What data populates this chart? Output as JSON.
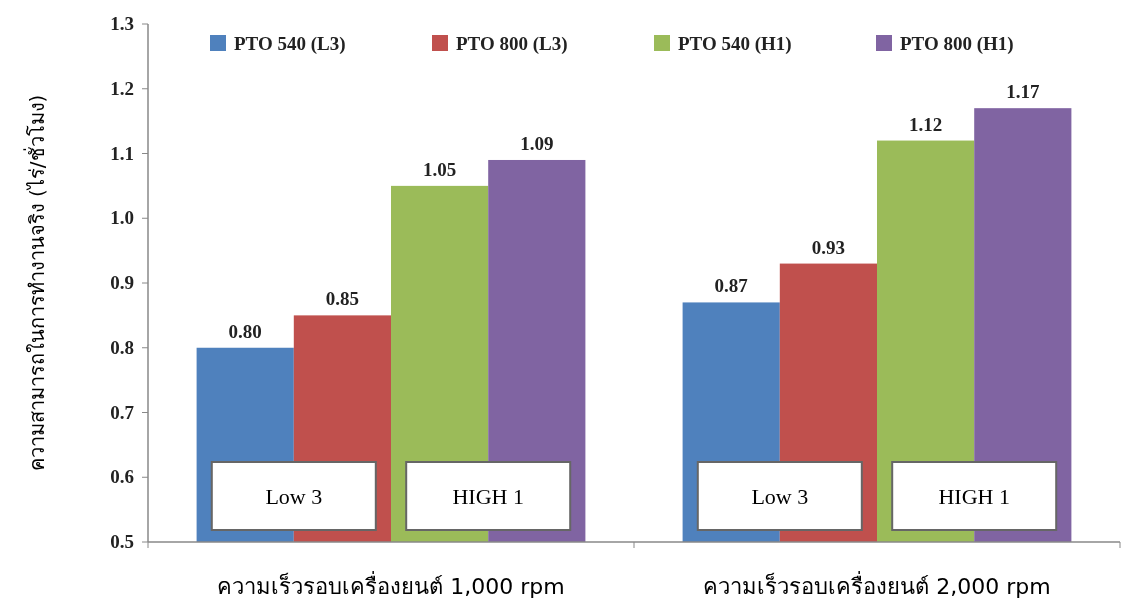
{
  "chart_data": {
    "type": "bar",
    "ylabel": "ความสามารถในการทำงานจริง (ไร่/ชั่วโมง)",
    "categories": [
      "ความเร็วรอบเครื่องยนต์ 1,000 rpm",
      "ความเร็วรอบเครื่องยนต์ 2,000 rpm"
    ],
    "series": [
      {
        "name": "PTO 540 (L3)",
        "color": "#4f81bd",
        "values": [
          0.8,
          0.87
        ],
        "value_labels": [
          "0.80",
          "0.87"
        ]
      },
      {
        "name": "PTO 800 (L3)",
        "color": "#c0504d",
        "values": [
          0.85,
          0.93
        ],
        "value_labels": [
          "0.85",
          "0.93"
        ]
      },
      {
        "name": "PTO 540 (H1)",
        "color": "#9bbb59",
        "values": [
          1.05,
          1.12
        ],
        "value_labels": [
          "1.05",
          "1.12"
        ]
      },
      {
        "name": "PTO 800 (H1)",
        "color": "#8064a2",
        "values": [
          1.09,
          1.17
        ],
        "value_labels": [
          "1.09",
          "1.17"
        ]
      }
    ],
    "ylim": [
      0.5,
      1.3
    ],
    "yticks": [
      0.5,
      0.6,
      0.7,
      0.8,
      0.9,
      {
        "value": 1.0,
        "label": "1.0"
      },
      1.1,
      1.2,
      1.3
    ],
    "grid": false,
    "legend": "top",
    "annotations": [
      "Low 3",
      "HIGH 1",
      "Low 3",
      "HIGH 1"
    ]
  }
}
